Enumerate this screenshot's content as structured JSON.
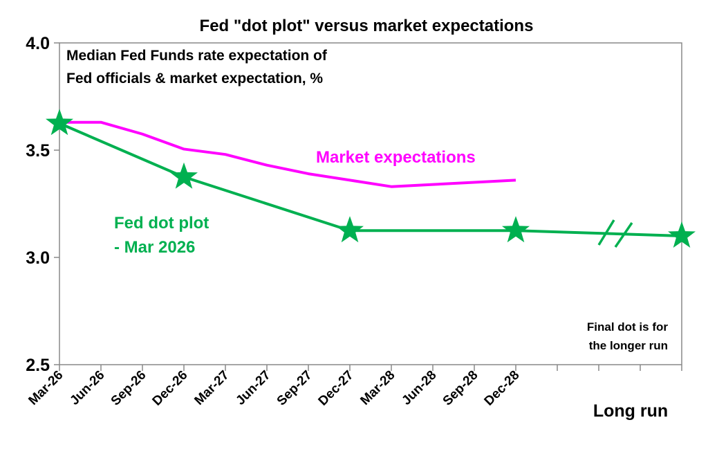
{
  "chart_data": {
    "type": "line",
    "title": "Fed \"dot plot\" versus market expectations",
    "subtitle_lines": [
      "Median Fed Funds rate expectation of",
      "Fed officials & market expectation, %"
    ],
    "xlabel": "",
    "ylabel": "",
    "ylim": [
      2.5,
      4.0
    ],
    "yticks": [
      "2.5",
      "3.0",
      "3.5",
      "4.0"
    ],
    "ytick_values": [
      2.5,
      3.0,
      3.5,
      4.0
    ],
    "categories": [
      "Mar-26",
      "Jun-26",
      "Sep-26",
      "Dec-26",
      "Mar-27",
      "Jun-27",
      "Sep-27",
      "Dec-27",
      "Mar-28",
      "Jun-28",
      "Sep-28",
      "Dec-28",
      "",
      "",
      "",
      "Long run"
    ],
    "grid": false,
    "series": [
      {
        "name": "Market expectations",
        "color": "#ff00ff",
        "x": [
          "Mar-26",
          "Jun-26",
          "Sep-26",
          "Dec-26",
          "Mar-27",
          "Jun-27",
          "Sep-27",
          "Dec-27",
          "Mar-28",
          "Jun-28",
          "Sep-28",
          "Dec-28"
        ],
        "values": [
          3.63,
          3.63,
          3.575,
          3.505,
          3.48,
          3.43,
          3.39,
          3.36,
          3.33,
          3.34,
          3.35,
          3.36
        ]
      },
      {
        "name": "Fed dot plot - Mar 2026",
        "label_lines": [
          "Fed dot plot",
          "- Mar 2026"
        ],
        "color": "#00b050",
        "marker": "star",
        "x": [
          "Mar-26",
          "Dec-26",
          "Dec-27",
          "Dec-28",
          "Long run"
        ],
        "values": [
          3.625,
          3.375,
          3.125,
          3.125,
          3.1
        ]
      }
    ],
    "annotations": {
      "market_label": "Market expectations",
      "note_lines": [
        "Final dot is for",
        "the longer run"
      ],
      "long_run_label": "Long run"
    }
  }
}
